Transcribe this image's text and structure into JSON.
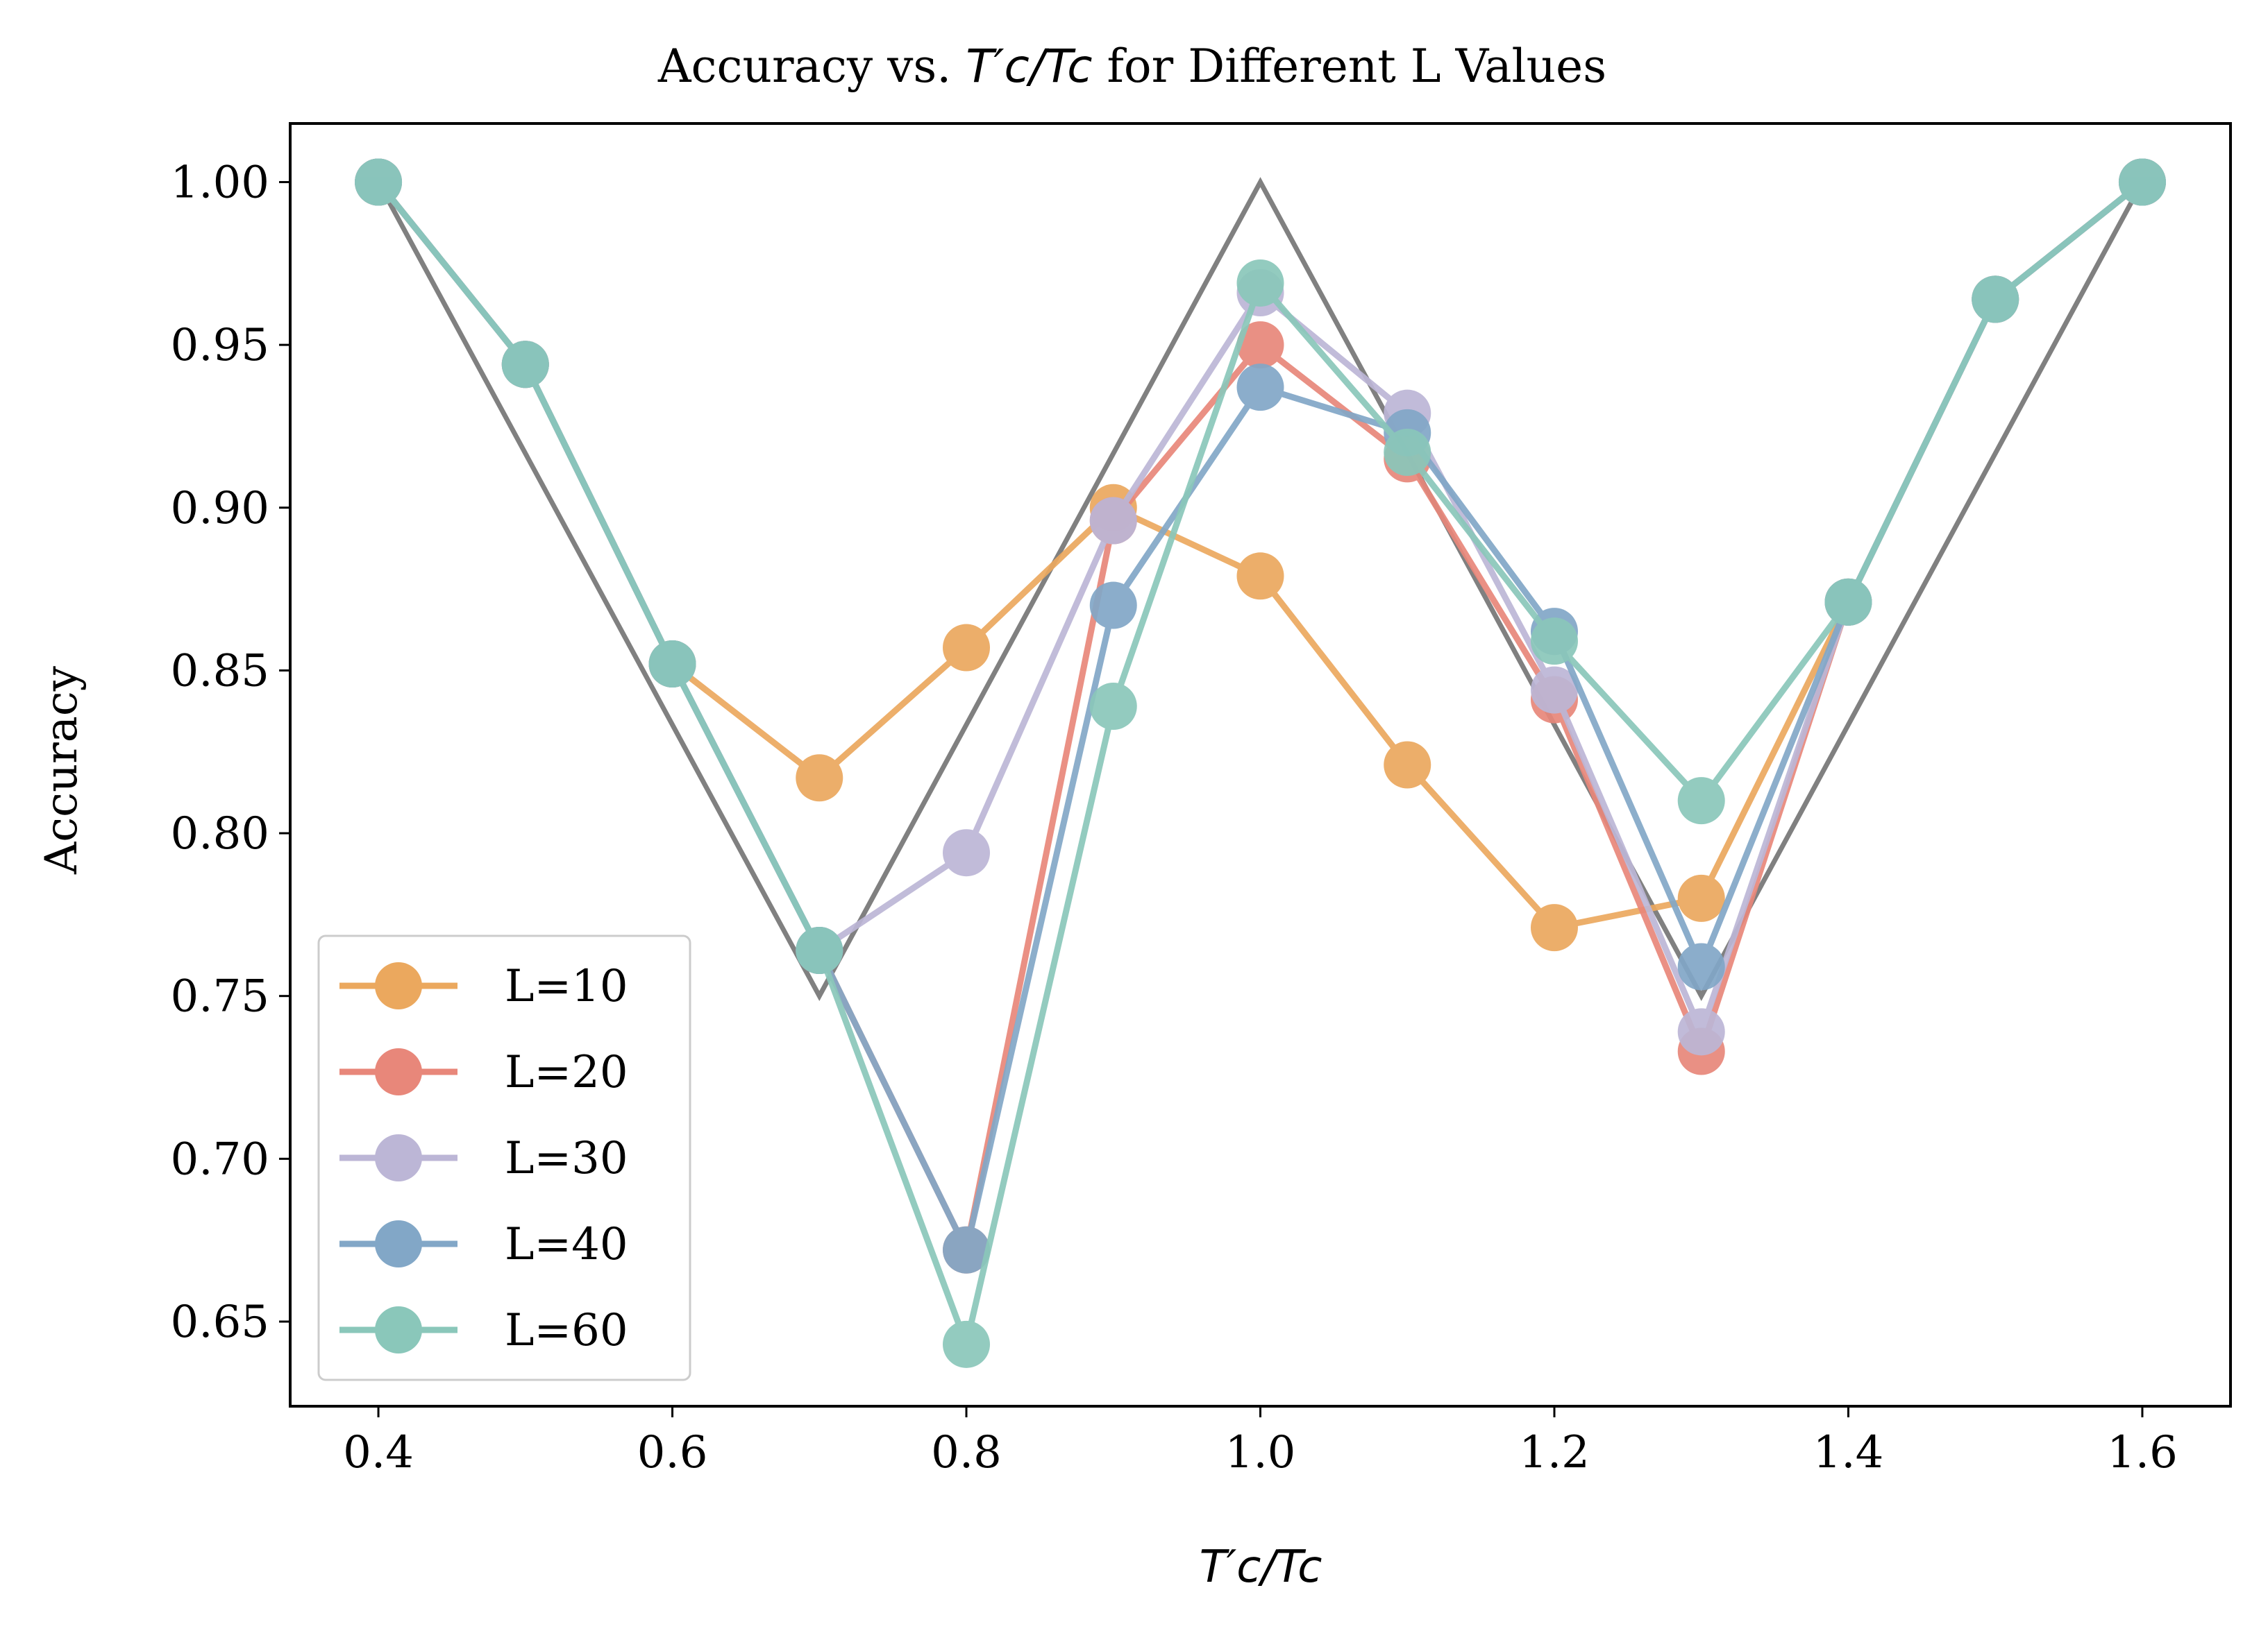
{
  "chart_data": {
    "type": "line",
    "title_prefix": "Accuracy vs. ",
    "title_suffix": " for Different L Values",
    "math_label": "T′c/Tc",
    "xlabel": "T′c/Tc",
    "ylabel": "Accuracy",
    "xlim": [
      0.34,
      1.66
    ],
    "ylim": [
      0.624,
      1.018
    ],
    "xticks": [
      0.4,
      0.6,
      0.8,
      1.0,
      1.2,
      1.4,
      1.6
    ],
    "xtick_labels": [
      "0.4",
      "0.6",
      "0.8",
      "1.0",
      "1.2",
      "1.4",
      "1.6"
    ],
    "yticks": [
      0.65,
      0.7,
      0.75,
      0.8,
      0.85,
      0.9,
      0.95,
      1.0
    ],
    "ytick_labels": [
      "0.65",
      "0.70",
      "0.75",
      "0.80",
      "0.85",
      "0.90",
      "0.95",
      "1.00"
    ],
    "legend_position": "lower-left",
    "reference": {
      "x": [
        0.4,
        0.7,
        1.0,
        1.3,
        1.6
      ],
      "y": [
        1.0,
        0.75,
        1.0,
        0.75,
        1.0
      ],
      "color": "#808080"
    },
    "series": [
      {
        "name": "L=10",
        "color": "#EBA85E",
        "x": [
          0.4,
          0.5,
          0.6,
          0.7,
          0.8,
          0.9,
          1.0,
          1.1,
          1.2,
          1.3,
          1.4,
          1.5,
          1.6
        ],
        "y": [
          1.0,
          0.944,
          0.852,
          0.817,
          0.857,
          0.9,
          0.879,
          0.821,
          0.771,
          0.78,
          0.871,
          0.964,
          1.0
        ]
      },
      {
        "name": "L=20",
        "color": "#E8877A",
        "x": [
          0.4,
          0.5,
          0.6,
          0.7,
          0.8,
          0.9,
          1.0,
          1.1,
          1.2,
          1.3,
          1.4,
          1.5,
          1.6
        ],
        "y": [
          1.0,
          0.944,
          0.852,
          0.764,
          0.672,
          0.896,
          0.95,
          0.915,
          0.841,
          0.733,
          0.871,
          0.964,
          1.0
        ]
      },
      {
        "name": "L=30",
        "color": "#BCB6D6",
        "x": [
          0.4,
          0.5,
          0.6,
          0.7,
          0.8,
          0.9,
          1.0,
          1.1,
          1.2,
          1.3,
          1.4,
          1.5,
          1.6
        ],
        "y": [
          1.0,
          0.944,
          0.852,
          0.764,
          0.794,
          0.896,
          0.966,
          0.929,
          0.844,
          0.739,
          0.871,
          0.964,
          1.0
        ]
      },
      {
        "name": "L=40",
        "color": "#82A7C7",
        "x": [
          0.4,
          0.5,
          0.6,
          0.7,
          0.8,
          0.9,
          1.0,
          1.1,
          1.2,
          1.3,
          1.4,
          1.5,
          1.6
        ],
        "y": [
          1.0,
          0.944,
          0.852,
          0.764,
          0.672,
          0.87,
          0.937,
          0.923,
          0.862,
          0.759,
          0.871,
          0.964,
          1.0
        ]
      },
      {
        "name": "L=60",
        "color": "#8AC7BA",
        "x": [
          0.4,
          0.5,
          0.6,
          0.7,
          0.8,
          0.9,
          1.0,
          1.1,
          1.2,
          1.3,
          1.4,
          1.5,
          1.6
        ],
        "y": [
          1.0,
          0.944,
          0.852,
          0.764,
          0.643,
          0.839,
          0.969,
          0.917,
          0.859,
          0.81,
          0.871,
          0.964,
          1.0
        ]
      }
    ]
  }
}
